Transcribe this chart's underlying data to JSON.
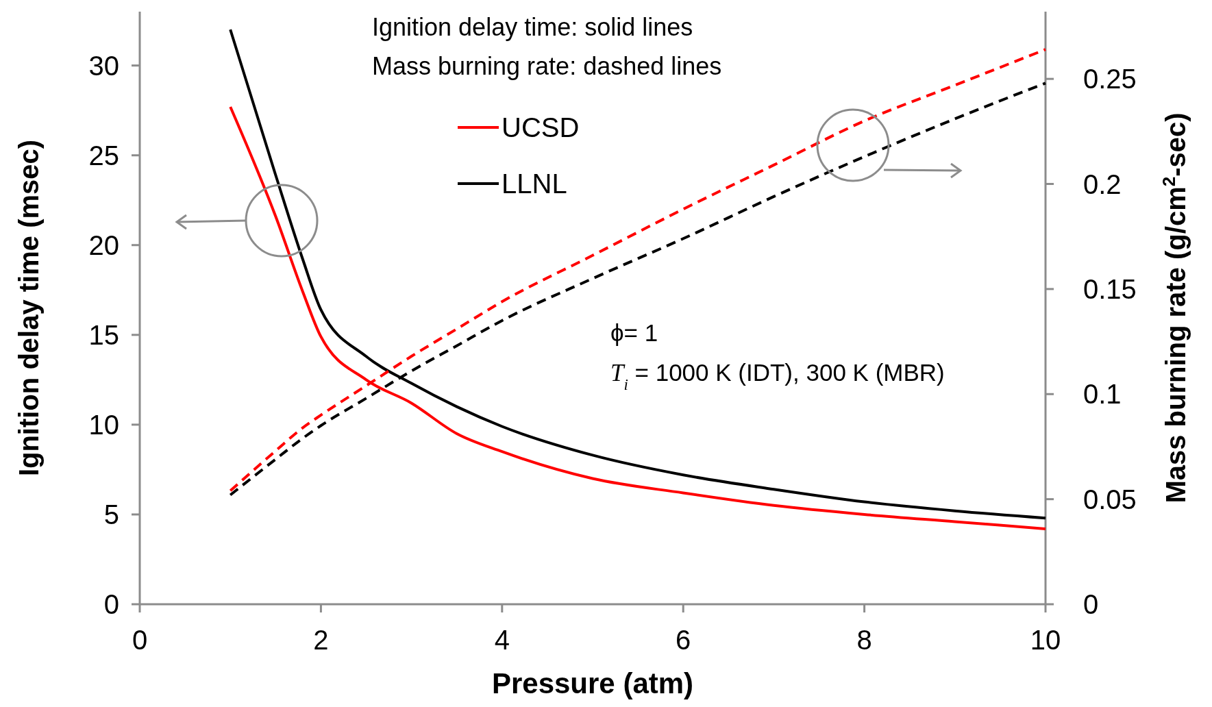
{
  "chart_data": {
    "type": "line",
    "xlabel": "Pressure (atm)",
    "ylabel": "Ignition delay time (msec)",
    "y2label": "Mass burning rate (g/cm$^{2}$-sec)",
    "x": [
      1,
      1.5,
      1.8,
      2,
      2.5,
      3,
      3.5,
      4,
      5,
      6,
      7,
      8,
      9,
      10
    ],
    "xlim": [
      0,
      10
    ],
    "xticks": [
      0,
      2,
      4,
      6,
      8,
      10
    ],
    "ylim": [
      0,
      33
    ],
    "yticks": [
      0,
      5,
      10,
      15,
      20,
      25,
      30
    ],
    "y2lim": [
      0,
      0.282
    ],
    "y2ticks": [
      0,
      0.05,
      0.1,
      0.15,
      0.2,
      0.25
    ],
    "grid": false,
    "legend": "top",
    "marker": "none",
    "series": [
      {
        "name": "UCSD",
        "color": "#ff0000",
        "line_style": "solid",
        "values": [
          27.7,
          21.6,
          17.4,
          14.9,
          12.5,
          11.2,
          9.5,
          8.5,
          7.0,
          6.2,
          5.5,
          5.0,
          4.6,
          4.2
        ]
      },
      {
        "name": "LLNL",
        "color": "#000000",
        "line_style": "solid",
        "values": [
          32.0,
          23.9,
          19.2,
          16.4,
          13.8,
          12.3,
          11.0,
          9.9,
          8.3,
          7.2,
          6.4,
          5.7,
          5.2,
          4.8
        ]
      },
      {
        "color": "#ff0000",
        "axis": "y2",
        "line_style": "dashed",
        "values": [
          0.054,
          0.073,
          0.084,
          0.09,
          0.104,
          0.118,
          0.131,
          0.144,
          0.166,
          0.188,
          0.209,
          0.23,
          0.247,
          0.264
        ]
      },
      {
        "color": "#000000",
        "axis": "y2",
        "line_style": "dashed",
        "values": [
          0.052,
          0.069,
          0.079,
          0.085,
          0.098,
          0.111,
          0.123,
          0.135,
          0.155,
          0.174,
          0.194,
          0.213,
          0.231,
          0.248
        ]
      }
    ],
    "annotations": [
      "Ignition delay time: solid lines",
      "Mass burning rate:  dashed lines",
      "ϕ= 1",
      "T$_{i}$ = 1000 K (IDT), 300 K (MBR)"
    ]
  }
}
